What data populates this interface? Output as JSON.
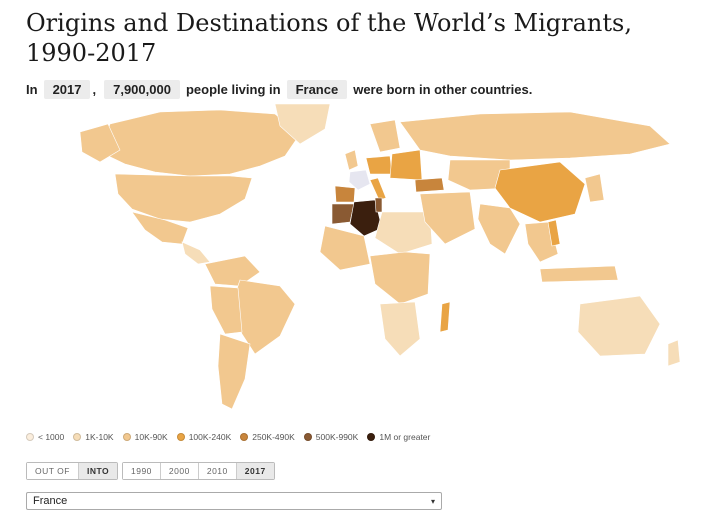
{
  "title": "Origins and Destinations of the World’s Migrants, 1990-2017",
  "sentence": {
    "prefix": "In",
    "year": "2017",
    "comma": ",",
    "count": "7,900,000",
    "middle": "people living in",
    "country": "France",
    "suffix": "were born in other countries."
  },
  "legend": [
    {
      "label": "< 1000",
      "color": "#fbeedd"
    },
    {
      "label": "1K-10K",
      "color": "#f6ddb8"
    },
    {
      "label": "10K-90K",
      "color": "#f2c88f"
    },
    {
      "label": "100K-240K",
      "color": "#e9a444"
    },
    {
      "label": "250K-490K",
      "color": "#c8853c"
    },
    {
      "label": "500K-990K",
      "color": "#8a5a33"
    },
    {
      "label": "1M or greater",
      "color": "#3b1f0e"
    }
  ],
  "direction_buttons": [
    {
      "label": "OUT OF",
      "active": false
    },
    {
      "label": "INTO",
      "active": true
    }
  ],
  "year_buttons": [
    {
      "label": "1990",
      "active": false
    },
    {
      "label": "2000",
      "active": false
    },
    {
      "label": "2010",
      "active": false
    },
    {
      "label": "2017",
      "active": true
    }
  ],
  "country_select": {
    "value": "France"
  },
  "map": {
    "selected_country": "France",
    "selected_color": "#e6e6f0",
    "base_color": "#f2c88f",
    "border_color": "#ffffff"
  }
}
